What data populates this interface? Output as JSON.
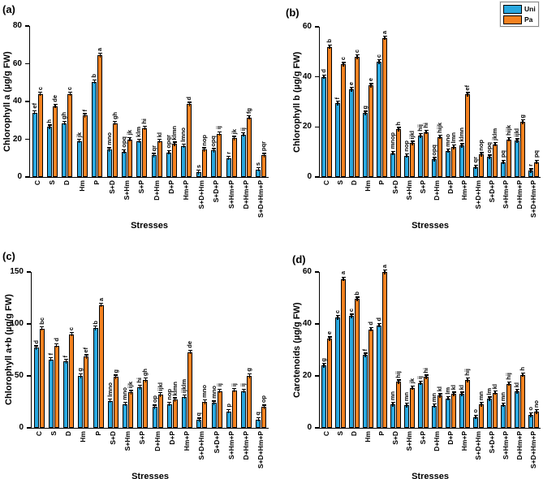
{
  "legend": {
    "items": [
      {
        "label": "Uni",
        "color": "#29A8E0"
      },
      {
        "label": "Pa",
        "color": "#F58220"
      }
    ]
  },
  "xlabel": "Stresses",
  "categories": [
    "C",
    "S",
    "D",
    "Hm",
    "P",
    "S+D",
    "S+Hm",
    "S+P",
    "D+Hm",
    "D+P",
    "Hm+P",
    "S+D+Hm",
    "S+D+P",
    "S+Hm+P",
    "D+Hm+P",
    "S+D+Hm+P"
  ],
  "chart_data": [
    {
      "type": "bar",
      "panel_label": "(a)",
      "ylabel": "Chlorophyll a (µg/g FW)",
      "xlabel": "Stresses",
      "ylim": [
        0,
        80
      ],
      "yticks": [
        0,
        20,
        40,
        60,
        80
      ],
      "grid": false,
      "error_bars": true,
      "legend_position": "figure-top-right",
      "categories": [
        "C",
        "S",
        "D",
        "Hm",
        "P",
        "S+D",
        "S+Hm",
        "S+P",
        "D+Hm",
        "D+P",
        "Hm+P",
        "S+D+Hm",
        "S+D+P",
        "S+Hm+P",
        "D+Hm+P",
        "S+D+Hm+P"
      ],
      "series": [
        {
          "name": "Uni",
          "color": "#29A8E0",
          "values": [
            34,
            26.5,
            28.5,
            19,
            50.5,
            14.5,
            13.5,
            19,
            11.5,
            13,
            16.5,
            2.5,
            14,
            10,
            22.5,
            4
          ],
          "sig_letters": [
            "ef",
            "h",
            "gh",
            "jk",
            "b",
            "mno",
            "opq",
            "klm",
            "qr",
            "opqr",
            "lmno",
            "s",
            "opq",
            "r",
            "ij",
            "s"
          ]
        },
        {
          "name": "Pa",
          "color": "#F58220",
          "values": [
            44,
            37.5,
            44,
            32.5,
            64.5,
            28.5,
            20,
            26,
            19,
            17.5,
            38.5,
            14.5,
            23,
            20.5,
            31.5,
            11.5
          ],
          "sig_letters": [
            "c",
            "de",
            "c",
            "f",
            "a",
            "gh",
            "jk",
            "hi",
            "kl",
            "klmn",
            "d",
            "nop",
            "ij",
            "jk",
            "fg",
            "pqr"
          ]
        }
      ]
    },
    {
      "type": "bar",
      "panel_label": "(b)",
      "ylabel": "Chlorophyll b (µg/g FW)",
      "xlabel": "Stresses",
      "ylim": [
        0,
        60
      ],
      "yticks": [
        0,
        20,
        40,
        60
      ],
      "grid": false,
      "error_bars": true,
      "legend_position": "figure-top-right",
      "categories": [
        "C",
        "S",
        "D",
        "Hm",
        "P",
        "S+D",
        "S+Hm",
        "S+P",
        "D+Hm",
        "D+P",
        "Hm+P",
        "S+D+Hm",
        "S+D+P",
        "S+Hm+P",
        "D+Hm+P",
        "S+D+Hm+P"
      ],
      "series": [
        {
          "name": "Uni",
          "color": "#29A8E0",
          "values": [
            40,
            29.5,
            35,
            25.5,
            46,
            9.5,
            8.5,
            16.5,
            7,
            10.5,
            12.5,
            4,
            8,
            6,
            14.5,
            2.5
          ],
          "sig_letters": [
            "d",
            "f",
            "e",
            "g",
            "c",
            "mnop",
            "nop",
            "hij",
            "opq",
            "mno",
            "klmn",
            "qr",
            "opq",
            "pq",
            "ijkl",
            "r"
          ]
        },
        {
          "name": "Pa",
          "color": "#F58220",
          "values": [
            52,
            45,
            48,
            36.5,
            55.5,
            19,
            13.5,
            18,
            16,
            12,
            33,
            9,
            13,
            15,
            22,
            6
          ],
          "sig_letters": [
            "b",
            "c",
            "c",
            "e",
            "a",
            "h",
            "ijkl",
            "hi",
            "hijk",
            "lmn",
            "ef",
            "nop",
            "jklm",
            "hijk",
            "g",
            "pq"
          ]
        }
      ]
    },
    {
      "type": "bar",
      "panel_label": "(c)",
      "ylabel": "Chlorophyll a+b (µg/g FW)",
      "xlabel": "Stresses",
      "ylim": [
        0,
        150
      ],
      "yticks": [
        0,
        50,
        100,
        150
      ],
      "grid": false,
      "error_bars": true,
      "legend_position": "figure-top-right",
      "categories": [
        "C",
        "S",
        "D",
        "Hm",
        "P",
        "S+D",
        "S+Hm",
        "S+P",
        "D+Hm",
        "D+P",
        "Hm+P",
        "S+D+Hm",
        "S+D+P",
        "S+Hm+P",
        "D+Hm+P",
        "S+D+Hm+P"
      ],
      "series": [
        {
          "name": "Uni",
          "color": "#29A8E0",
          "values": [
            77,
            66,
            64,
            50,
            96,
            26,
            23,
            39,
            20,
            23,
            30,
            7.5,
            24,
            16,
            35.5,
            8
          ],
          "sig_letters": [
            "d",
            "f",
            "f",
            "g",
            "b",
            "lmno",
            "mno",
            "hi",
            "op",
            "nop",
            "ijklm",
            "q",
            "mno",
            "p",
            "ij",
            "q"
          ]
        },
        {
          "name": "Pa",
          "color": "#F58220",
          "values": [
            95.5,
            79,
            90,
            68.5,
            118,
            49,
            34,
            46,
            32,
            27,
            73,
            25,
            35.5,
            36,
            50,
            20
          ],
          "sig_letters": [
            "bc",
            "d",
            "c",
            "ef",
            "a",
            "g",
            "ijk",
            "gh",
            "ijkl",
            "klmn",
            "de",
            "mno",
            "ij",
            "ij",
            "g",
            "op"
          ]
        }
      ]
    },
    {
      "type": "bar",
      "panel_label": "(d)",
      "ylabel": "Carotenoids (µg/g FW)",
      "xlabel": "Stresses",
      "ylim": [
        0,
        60
      ],
      "yticks": [
        0,
        20,
        40,
        60
      ],
      "grid": false,
      "error_bars": true,
      "legend_position": "figure-top-right",
      "categories": [
        "C",
        "S",
        "D",
        "Hm",
        "P",
        "S+D",
        "S+Hm",
        "S+P",
        "D+Hm",
        "D+P",
        "Hm+P",
        "S+D+Hm",
        "S+D+P",
        "S+Hm+P",
        "D+Hm+P",
        "S+D+Hm+P"
      ],
      "series": [
        {
          "name": "Uni",
          "color": "#29A8E0",
          "values": [
            24,
            42.5,
            43,
            28,
            39.5,
            9,
            8.7,
            17.2,
            8.5,
            11.4,
            13,
            4.2,
            11.1,
            8.8,
            14,
            5
          ],
          "sig_letters": [
            "g",
            "c",
            "c",
            "f",
            "d",
            "mn",
            "mn",
            "ij",
            "mn",
            "lm",
            "kl",
            "o",
            "lm",
            "mn",
            "kl",
            "o"
          ]
        },
        {
          "name": "Pa",
          "color": "#F58220",
          "values": [
            34.3,
            57.3,
            49.6,
            37.9,
            60,
            17.7,
            15.4,
            19.6,
            12.4,
            13,
            18.4,
            9,
            13.5,
            17,
            20.4,
            6.2
          ],
          "sig_letters": [
            "e",
            "a",
            "b",
            "d",
            "a",
            "hij",
            "jk",
            "hi",
            "kl",
            "kl",
            "hij",
            "mn",
            "kl",
            "hij",
            "h",
            "no"
          ]
        }
      ]
    }
  ]
}
